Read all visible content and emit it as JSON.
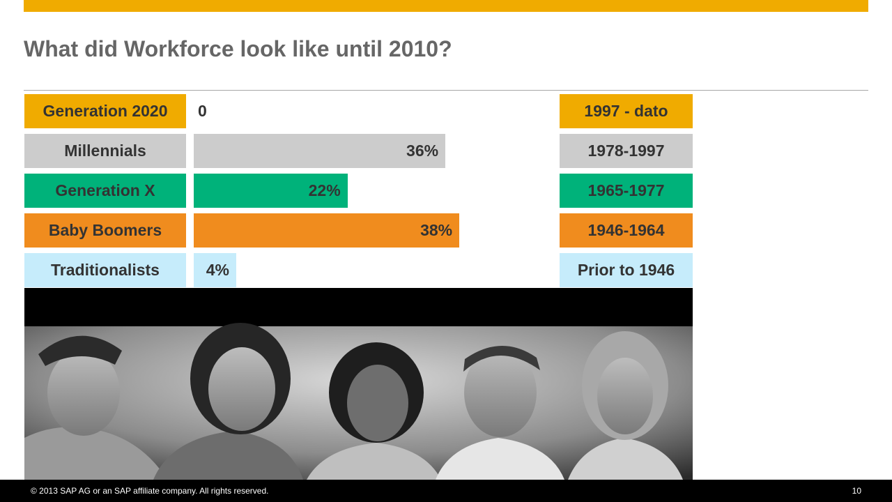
{
  "slide": {
    "title": "What did Workforce look like until 2010?"
  },
  "colors": {
    "accent_gold": "#f0ab00",
    "millennials_gray": "#cccccc",
    "genx_green": "#00b27a",
    "boomers_orange": "#f08c1e",
    "traditionalists_lightblue": "#c6ecfb"
  },
  "chart_data": {
    "type": "bar",
    "orientation": "horizontal",
    "categories": [
      "Generation 2020",
      "Millennials",
      "Generation  X",
      "Baby Boomers",
      "Traditionalists"
    ],
    "values": [
      0,
      36,
      22,
      38,
      4
    ],
    "value_labels": [
      "0",
      "36%",
      "22%",
      "38%",
      "4%"
    ],
    "year_ranges": [
      "1997 - dato",
      "1978-1997",
      "1965-1977",
      "1946-1964",
      "Prior to 1946"
    ],
    "xlim": [
      0,
      100
    ],
    "grid": false,
    "series_colors": [
      "#f0ab00",
      "#cccccc",
      "#00b27a",
      "#f08c1e",
      "#c6ecfb"
    ]
  },
  "photo": {
    "icon": "generations-portrait-photo"
  },
  "footer": {
    "copyright": "©  2013 SAP AG or an SAP affiliate company. All rights reserved.",
    "page_number": "10"
  }
}
